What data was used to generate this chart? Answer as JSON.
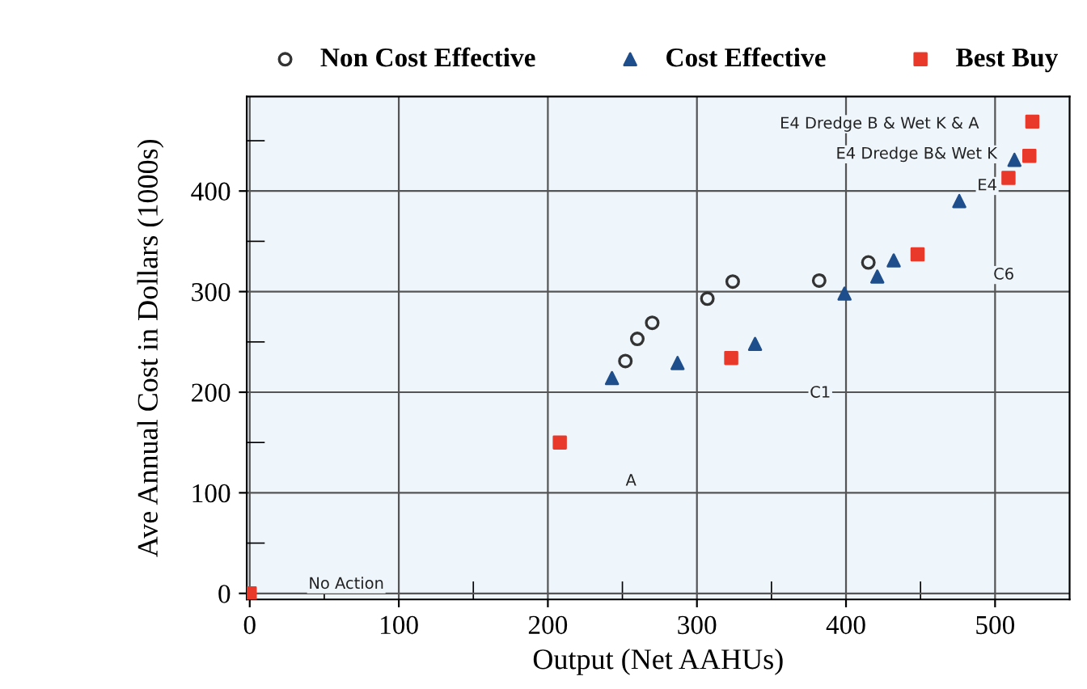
{
  "chart_data": {
    "type": "scatter",
    "xlabel": "Output (Net AAHUs)",
    "ylabel": "Ave Annual Cost in Dollars (1000s)",
    "xlim": [
      -2,
      550
    ],
    "ylim": [
      -6,
      494
    ],
    "xticks": [
      0,
      100,
      200,
      300,
      400,
      500,
      {
        "value": 50,
        "label": null
      },
      {
        "value": 150,
        "label": null
      },
      {
        "value": 250,
        "label": null
      },
      {
        "value": 350,
        "label": null
      },
      {
        "value": 450,
        "label": null
      }
    ],
    "yticks": [
      0,
      100,
      200,
      300,
      400,
      {
        "value": 50,
        "label": null
      },
      {
        "value": 150,
        "label": null
      },
      {
        "value": 250,
        "label": null
      },
      {
        "value": 350,
        "label": null
      },
      {
        "value": 450,
        "label": null
      }
    ],
    "grid": true,
    "legend": "top",
    "series": [
      {
        "name": "Non Cost Effective",
        "color": "#333333",
        "marker": "circle",
        "x": [
          252,
          260,
          270,
          307,
          324,
          382,
          415
        ],
        "values": [
          231,
          253,
          269,
          293,
          310,
          311,
          329
        ]
      },
      {
        "name": "Cost Effective",
        "color": "#1f4e8c",
        "marker": "triangle",
        "x": [
          243,
          287,
          339,
          399,
          421,
          432,
          476,
          513
        ],
        "values": [
          214,
          229,
          248,
          298,
          315,
          331,
          390,
          431
        ]
      },
      {
        "name": "Best Buy",
        "color": "#e8392b",
        "marker": "square",
        "x": [
          0,
          208,
          323,
          448,
          509,
          523,
          525
        ],
        "values": [
          0,
          150,
          234,
          337,
          413,
          435,
          469
        ]
      }
    ],
    "annotations": [
      "No Action",
      "A",
      "C1",
      "C6",
      "E4",
      "E4 Dredge B& Wet K",
      "E4 Dredge B & Wet K & A"
    ]
  }
}
